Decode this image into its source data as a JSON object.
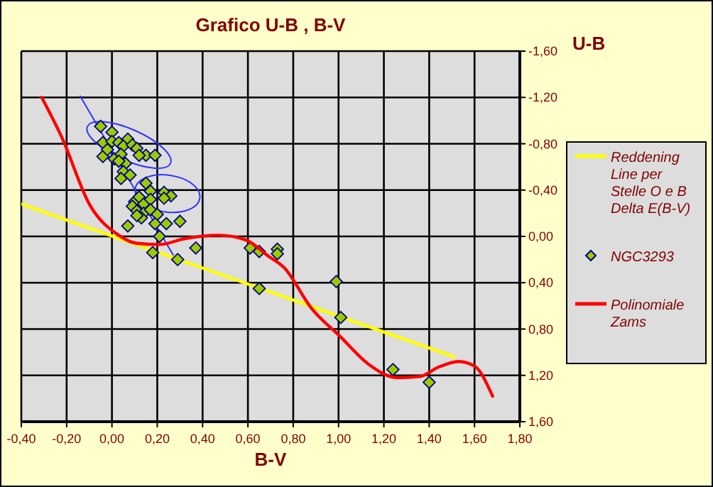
{
  "chart_data": {
    "type": "scatter",
    "title": "Grafico U-B , B-V",
    "xlabel": "B-V",
    "ylabel": "U-B",
    "xlim": [
      -0.4,
      1.8
    ],
    "ylim": [
      1.6,
      -1.6
    ],
    "xticks": [
      {
        "value": -0.4,
        "label": "-0,40"
      },
      {
        "value": -0.2,
        "label": "-0,20"
      },
      {
        "value": 0,
        "label": "0,00"
      },
      {
        "value": 0.2,
        "label": "0,20"
      },
      {
        "value": 0.4,
        "label": "0,40"
      },
      {
        "value": 0.6,
        "label": "0,60"
      },
      {
        "value": 0.8,
        "label": "0,80"
      },
      {
        "value": 1.0,
        "label": "1,00"
      },
      {
        "value": 1.2,
        "label": "1,20"
      },
      {
        "value": 1.4,
        "label": "1,40"
      },
      {
        "value": 1.6,
        "label": "1,60"
      },
      {
        "value": 1.8,
        "label": "1,80"
      }
    ],
    "yticks": [
      {
        "value": -1.6,
        "label": "-1,60"
      },
      {
        "value": -1.2,
        "label": "-1,20"
      },
      {
        "value": -0.8,
        "label": "-0,80"
      },
      {
        "value": -0.4,
        "label": "-0,40"
      },
      {
        "value": 0,
        "label": "0,00"
      },
      {
        "value": 0.4,
        "label": "0,40"
      },
      {
        "value": 0.8,
        "label": "0,80"
      },
      {
        "value": 1.2,
        "label": "1,20"
      },
      {
        "value": 1.6,
        "label": "1,60"
      }
    ],
    "grid": true,
    "legend": "right",
    "series": [
      {
        "type": "line",
        "name": "Reddening Line per Stelle O e B Delta E(B-V)",
        "color": "#ffff00",
        "marker": "none",
        "x": [
          -0.4,
          1.51
        ],
        "values": [
          -0.28,
          1.04
        ]
      },
      {
        "type": "line",
        "color": "#3333ff",
        "marker": "none",
        "x": [
          -0.14,
          0.27
        ],
        "values": [
          -1.21,
          0.16
        ]
      },
      {
        "name": "NGC3293",
        "color": "#99cc00",
        "marker": "diamond",
        "x": [
          -0.05,
          0.0,
          0.07,
          -0.04,
          0.0,
          0.03,
          0.05,
          0.09,
          0.11,
          0.15,
          0.19,
          0.12,
          -0.04,
          0.01,
          0.04,
          0.06,
          -0.02,
          0.03,
          0.05,
          0.08,
          0.04,
          0.15,
          0.17,
          0.23,
          0.26,
          0.23,
          0.1,
          0.12,
          0.14,
          0.17,
          0.09,
          0.11,
          0.14,
          0.17,
          0.2,
          0.13,
          0.11,
          0.07,
          0.19,
          0.24,
          0.3,
          0.21,
          0.18,
          0.29,
          0.37,
          0.61,
          0.65,
          0.73,
          0.73,
          0.65,
          0.99,
          1.01,
          1.24,
          1.4
        ],
        "values": [
          -0.95,
          -0.9,
          -0.84,
          -0.81,
          -0.82,
          -0.81,
          -0.78,
          -0.79,
          -0.76,
          -0.7,
          -0.7,
          -0.7,
          -0.69,
          -0.67,
          -0.71,
          -0.63,
          -0.75,
          -0.65,
          -0.56,
          -0.53,
          -0.5,
          -0.46,
          -0.39,
          -0.38,
          -0.35,
          -0.33,
          -0.3,
          -0.34,
          -0.28,
          -0.32,
          -0.26,
          -0.22,
          -0.2,
          -0.23,
          -0.19,
          -0.16,
          -0.18,
          -0.09,
          -0.11,
          -0.11,
          -0.13,
          0.0,
          0.14,
          0.2,
          0.1,
          0.1,
          0.13,
          0.11,
          0.15,
          0.45,
          0.39,
          0.7,
          1.15,
          1.26
        ]
      },
      {
        "type": "line",
        "name": "Polinomiale Zams",
        "color": "#ff0000",
        "marker": "none",
        "x": [
          -0.31,
          -0.22,
          -0.1,
          0.03,
          0.11,
          0.21,
          0.32,
          0.47,
          0.59,
          0.69,
          0.76,
          0.88,
          1.01,
          1.13,
          1.26,
          1.36,
          1.44,
          1.53,
          1.6,
          1.68
        ],
        "values": [
          -1.2,
          -0.85,
          -0.28,
          -0.01,
          0.06,
          0.07,
          0.02,
          -0.01,
          0.03,
          0.17,
          0.27,
          0.62,
          0.87,
          1.1,
          1.22,
          1.21,
          1.13,
          1.08,
          1.12,
          1.38
        ]
      }
    ]
  }
}
